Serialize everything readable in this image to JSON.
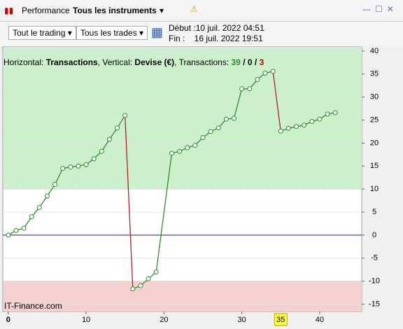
{
  "window": {
    "tab": "Performance",
    "instrument": "Tous les instruments"
  },
  "toolbar": {
    "trading": "Tout le trading",
    "trades": "Tous les trades",
    "start": "Début :10 juil. 2022 04:51",
    "end": "Fin :    16 juil. 2022 19:51"
  },
  "header": [
    "Horizontal: ",
    "Transactions",
    ", Vertical: ",
    "Devise (€)",
    ", Transactions: ",
    "39",
    " / ",
    "0",
    " / ",
    "3"
  ],
  "watermark": "IT-Finance.com",
  "chart_data": {
    "type": "line",
    "x": [
      0,
      1,
      2,
      3,
      4,
      5,
      6,
      7,
      8,
      9,
      10,
      11,
      12,
      13,
      14,
      15,
      16,
      17,
      18,
      19,
      21,
      22,
      23,
      24,
      25,
      26,
      27,
      28,
      29,
      30,
      31,
      32,
      33,
      34,
      35,
      36,
      37,
      38,
      39,
      40,
      41,
      42
    ],
    "values": [
      0,
      1,
      1.5,
      4,
      6,
      8.5,
      11,
      14.5,
      14.8,
      15,
      15.3,
      16.6,
      18.2,
      20.8,
      23.3,
      26,
      -11.7,
      -11,
      -9.5,
      -8,
      17.8,
      18.2,
      19,
      19.5,
      21.2,
      22.5,
      23.3,
      25.2,
      25.4,
      31.8,
      31.8,
      33.8,
      35.2,
      35.6,
      22.6,
      23.2,
      23.6,
      23.9,
      24.7,
      25.2,
      26.3,
      26.6
    ],
    "color": "#2e8b2e",
    "down_color": "#b22222",
    "zero_color": "#1a1aa0",
    "zones": [
      {
        "from": 10,
        "to": 40.9,
        "color": "#ccf0cc"
      },
      {
        "from": -16.6,
        "to": -10,
        "color": "#f5d0d0"
      }
    ],
    "xlim": [
      -0.7,
      45.4
    ],
    "ylim": [
      -16.6,
      40.9
    ],
    "xticks": [
      0,
      10,
      20,
      30,
      40
    ],
    "x_highlight": 35,
    "yticks": [
      40,
      35,
      30,
      25,
      20,
      15,
      10,
      5,
      0,
      -5,
      -10,
      -15
    ],
    "grid": true
  }
}
